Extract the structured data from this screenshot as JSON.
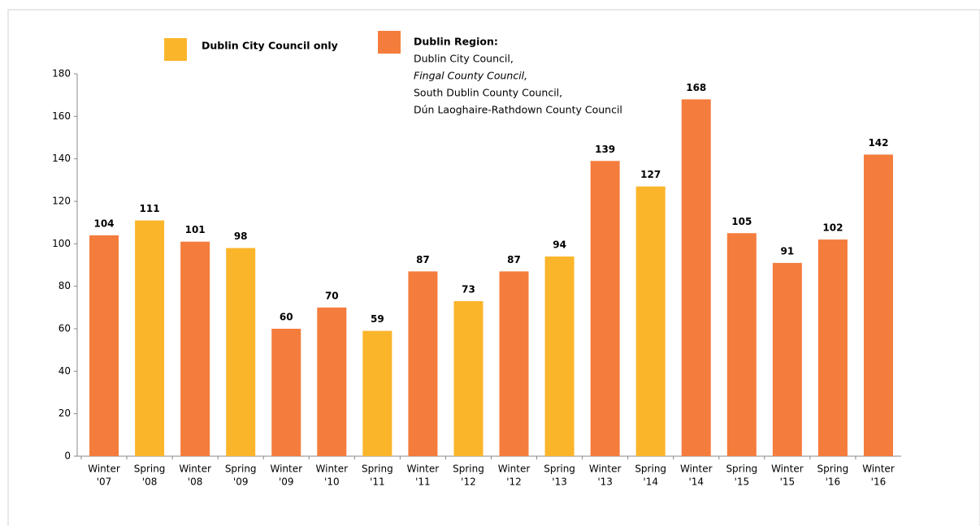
{
  "chart_data": {
    "type": "bar",
    "categories": [
      [
        "Winter",
        "'07"
      ],
      [
        "Spring",
        "'08"
      ],
      [
        "Winter",
        "'08"
      ],
      [
        "Spring",
        "'09"
      ],
      [
        "Winter",
        "'09"
      ],
      [
        "Winter",
        "'10"
      ],
      [
        "Spring",
        "'11"
      ],
      [
        "Winter",
        "'11"
      ],
      [
        "Spring",
        "'12"
      ],
      [
        "Winter",
        "'12"
      ],
      [
        "Spring",
        "'13"
      ],
      [
        "Winter",
        "'13"
      ],
      [
        "Spring",
        "'14"
      ],
      [
        "Winter",
        "'14"
      ],
      [
        "Spring",
        "'15"
      ],
      [
        "Winter",
        "'15"
      ],
      [
        "Spring",
        "'16"
      ],
      [
        "Winter",
        "'16"
      ]
    ],
    "series": [
      {
        "name": "Dublin City Council only",
        "color": "#fbb52b",
        "values": [
          null,
          111,
          null,
          98,
          null,
          null,
          59,
          null,
          73,
          null,
          94,
          null,
          127,
          null,
          null,
          null,
          null,
          null
        ]
      },
      {
        "name": "Dublin Region:",
        "color": "#f47c3c",
        "legend_details": [
          "Dublin City Council,",
          "Fingal County Council,",
          "South Dublin  County Council,",
          "Dún Laoghaire-Rathdown County Council"
        ],
        "values": [
          104,
          null,
          101,
          null,
          60,
          70,
          null,
          87,
          null,
          87,
          null,
          139,
          null,
          168,
          105,
          91,
          102,
          142
        ]
      }
    ],
    "ylim": [
      0,
      180
    ],
    "yticks": [
      0,
      20,
      40,
      60,
      80,
      100,
      120,
      140,
      160,
      180
    ]
  }
}
